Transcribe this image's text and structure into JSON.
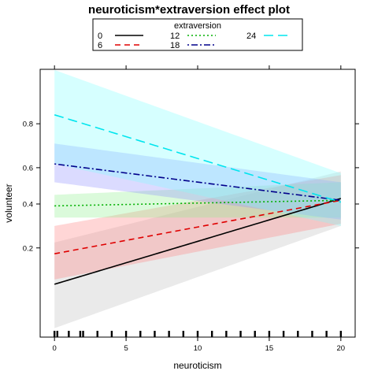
{
  "chart_data": {
    "type": "line",
    "title": "neuroticism*extraversion effect plot",
    "xlabel": "neuroticism",
    "ylabel": "volunteer",
    "xlim": [
      -1,
      21
    ],
    "ylim": [
      0.033,
      0.931
    ],
    "y_scale": "logit",
    "x_ticks": [
      0,
      5,
      10,
      15,
      20
    ],
    "x_tick_labels": [
      "0",
      "5",
      "10",
      "15",
      "20"
    ],
    "y_ticks": [
      0.2,
      0.4,
      0.6,
      0.8
    ],
    "y_tick_labels": [
      "0.2",
      "0.4",
      "0.6",
      "0.8"
    ],
    "grid": false,
    "legend": {
      "title": "extraversion",
      "placement": "top"
    },
    "series": [
      {
        "name": "0",
        "color": "#000000",
        "band_color": "#bebebe",
        "dash": "solid",
        "x": [
          0,
          20
        ],
        "y": [
          0.1,
          0.43
        ],
        "lower": [
          0.04,
          0.29
        ],
        "upper": [
          0.22,
          0.58
        ]
      },
      {
        "name": "6",
        "color": "#df0000",
        "band_color": "#ff8080",
        "dash": "dashed",
        "x": [
          0,
          20
        ],
        "y": [
          0.18,
          0.42
        ],
        "lower": [
          0.11,
          0.3
        ],
        "upper": [
          0.29,
          0.56
        ]
      },
      {
        "name": "12",
        "color": "#00b000",
        "band_color": "#90ee90",
        "dash": "dotted",
        "x": [
          0,
          20
        ],
        "y": [
          0.39,
          0.42
        ],
        "lower": [
          0.33,
          0.33
        ],
        "upper": [
          0.45,
          0.52
        ]
      },
      {
        "name": "18",
        "color": "#00008b",
        "band_color": "#9090ff",
        "dash": "dotdash",
        "x": [
          0,
          20
        ],
        "y": [
          0.62,
          0.42
        ],
        "lower": [
          0.52,
          0.32
        ],
        "upper": [
          0.72,
          0.52
        ]
      },
      {
        "name": "24",
        "color": "#00e5ee",
        "band_color": "#80ffff",
        "dash": "longdash",
        "x": [
          0,
          20
        ],
        "y": [
          0.83,
          0.41
        ],
        "lower": [
          0.62,
          0.29
        ],
        "upper": [
          0.93,
          0.57
        ]
      }
    ],
    "rug_x": [
      0,
      0.2,
      1,
      1.8,
      2,
      3,
      4,
      5,
      6,
      7,
      8,
      9,
      10,
      11,
      12,
      13,
      14,
      15,
      16,
      17,
      18,
      19,
      20
    ]
  }
}
